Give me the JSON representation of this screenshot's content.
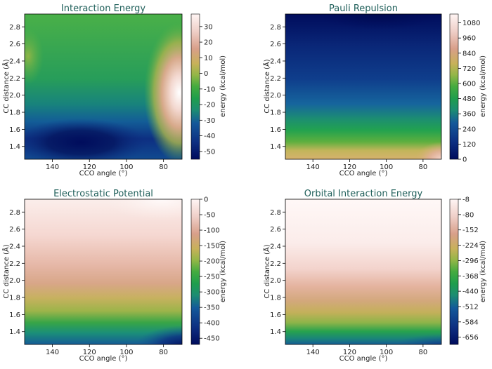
{
  "chart_data": [
    {
      "type": "heatmap",
      "title": "Interaction Energy",
      "xlabel": "CCO angle (°)",
      "ylabel": "CC distance (Å)",
      "xlim": [
        155,
        70
      ],
      "ylim": [
        1.25,
        2.95
      ],
      "xticks": [
        140,
        120,
        100,
        80
      ],
      "yticks": [
        1.4,
        1.6,
        1.8,
        2.0,
        2.2,
        2.4,
        2.6,
        2.8
      ],
      "colorbar": {
        "label": "energy (kcal/mol)",
        "range": [
          -55,
          38
        ],
        "ticks": [
          30,
          20,
          10,
          0,
          -10,
          -20,
          -30,
          -40,
          -50
        ]
      },
      "features": [
        {
          "description": "global minimum",
          "x": 125,
          "y": 1.44,
          "value": -52
        },
        {
          "description": "maximum",
          "x": 72,
          "y": 1.98,
          "value": 37
        }
      ]
    },
    {
      "type": "heatmap",
      "title": "Pauli Repulsion",
      "xlabel": "CCO angle (°)",
      "ylabel": "CC distance (Å)",
      "xlim": [
        155,
        70
      ],
      "ylim": [
        1.25,
        2.95
      ],
      "xticks": [
        140,
        120,
        100,
        80
      ],
      "yticks": [
        1.4,
        1.6,
        1.8,
        2.0,
        2.2,
        2.4,
        2.6,
        2.8
      ],
      "colorbar": {
        "label": "energy (kcal/mol)",
        "range": [
          0,
          1150
        ],
        "ticks": [
          1080,
          960,
          840,
          720,
          600,
          480,
          360,
          240,
          120,
          0
        ]
      },
      "features": [
        {
          "description": "maximum at short distance, small angle",
          "x": 72,
          "y": 1.27,
          "value": 1150
        },
        {
          "description": "minimum at long distance",
          "x": 105,
          "y": 2.95,
          "value": 0
        }
      ]
    },
    {
      "type": "heatmap",
      "title": "Electrostatic Potential",
      "xlabel": "CCO angle (°)",
      "ylabel": "CC distance (Å)",
      "xlim": [
        155,
        70
      ],
      "ylim": [
        1.25,
        2.95
      ],
      "xticks": [
        140,
        120,
        100,
        80
      ],
      "yticks": [
        1.4,
        1.6,
        1.8,
        2.0,
        2.2,
        2.4,
        2.6,
        2.8
      ],
      "colorbar": {
        "label": "energy (kcal/mol)",
        "range": [
          -470,
          0
        ],
        "ticks": [
          0,
          -50,
          -100,
          -150,
          -200,
          -250,
          -300,
          -350,
          -400,
          -450
        ]
      },
      "features": [
        {
          "description": "most negative at short distance, small angle",
          "x": 72,
          "y": 1.27,
          "value": -470
        },
        {
          "description": "near zero at long distance",
          "x": 75,
          "y": 2.95,
          "value": 0
        }
      ]
    },
    {
      "type": "heatmap",
      "title": "Orbital Interaction Energy",
      "xlabel": "CCO angle (°)",
      "ylabel": "CC distance (Å)",
      "xlim": [
        155,
        70
      ],
      "ylim": [
        1.25,
        2.95
      ],
      "xticks": [
        140,
        120,
        100,
        80
      ],
      "yticks": [
        1.4,
        1.6,
        1.8,
        2.0,
        2.2,
        2.4,
        2.6,
        2.8
      ],
      "colorbar": {
        "label": "energy (kcal/mol)",
        "range": [
          -690,
          -8
        ],
        "ticks": [
          -8,
          -80,
          -152,
          -224,
          -296,
          -368,
          -440,
          -512,
          -584,
          -656
        ]
      },
      "features": [
        {
          "description": "most negative at short distance",
          "x": 72,
          "y": 1.27,
          "value": -690
        },
        {
          "description": "near zero at long distance",
          "x": 110,
          "y": 2.95,
          "value": -8
        }
      ]
    }
  ]
}
